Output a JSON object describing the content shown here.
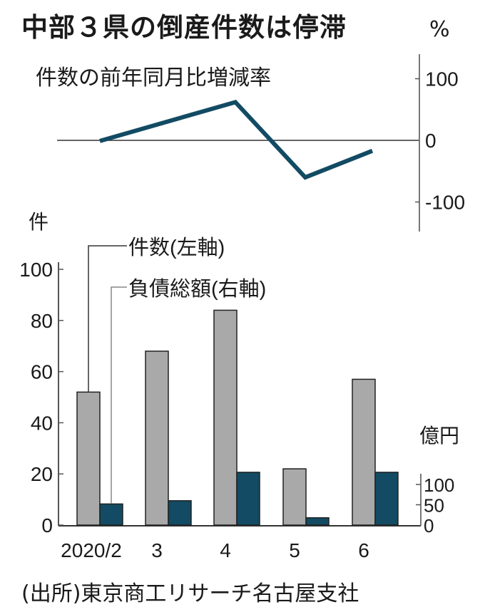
{
  "title": "中部３県の倒産件数は停滞",
  "line_panel": {
    "subtitle": "件数の前年同月比増減率",
    "unit": "%",
    "y_ticks": [
      "100",
      "0",
      "-100"
    ]
  },
  "bar_panel": {
    "left_unit": "件",
    "right_unit": "億円",
    "left_ticks": [
      "100",
      "80",
      "60",
      "40",
      "20",
      "0"
    ],
    "right_ticks": [
      "100",
      "50",
      "0"
    ],
    "legend": {
      "count": "件数(左軸)",
      "debt": "負債総額(右軸)"
    },
    "x_labels": [
      "2020/2",
      "3",
      "4",
      "5",
      "6"
    ]
  },
  "source": "(出所)東京商工リサーチ名古屋支社",
  "colors": {
    "line": "#124b63",
    "count_bar": "#a9a9a9",
    "debt_bar": "#124b63",
    "axis": "#555555"
  },
  "chart_data": [
    {
      "type": "line",
      "title": "件数の前年同月比増減率",
      "ylabel": "%",
      "categories": [
        "2020/2",
        "3",
        "4",
        "5",
        "6"
      ],
      "x_positions_note": "line points aligned to months 2020/2 through 6",
      "values": [
        -1,
        62,
        -60,
        -17
      ],
      "point_months": [
        "2020/3",
        "2020/4",
        "2020/5",
        "2020/6"
      ],
      "ylim": [
        -130,
        130
      ],
      "y_ticks": [
        100,
        0,
        -100
      ],
      "grid": false
    },
    {
      "type": "bar",
      "title": "中部３県の倒産件数は停滞",
      "categories": [
        "2020/2",
        "3",
        "4",
        "5",
        "6"
      ],
      "series": [
        {
          "name": "件数(左軸)",
          "axis": "left",
          "unit": "件",
          "values": [
            52,
            68,
            84,
            22,
            57
          ]
        },
        {
          "name": "負債総額(右軸)",
          "axis": "right",
          "unit": "億円",
          "values": [
            52,
            60,
            130,
            18,
            130
          ]
        }
      ],
      "ylim_left": [
        0,
        100
      ],
      "y_ticks_left": [
        0,
        20,
        40,
        60,
        80,
        100
      ],
      "ylim_right": [
        0,
        130
      ],
      "y_ticks_right": [
        0,
        50,
        100
      ],
      "legend_position": "top-left, leader lines",
      "source": "(出所)東京商工リサーチ名古屋支社"
    }
  ]
}
